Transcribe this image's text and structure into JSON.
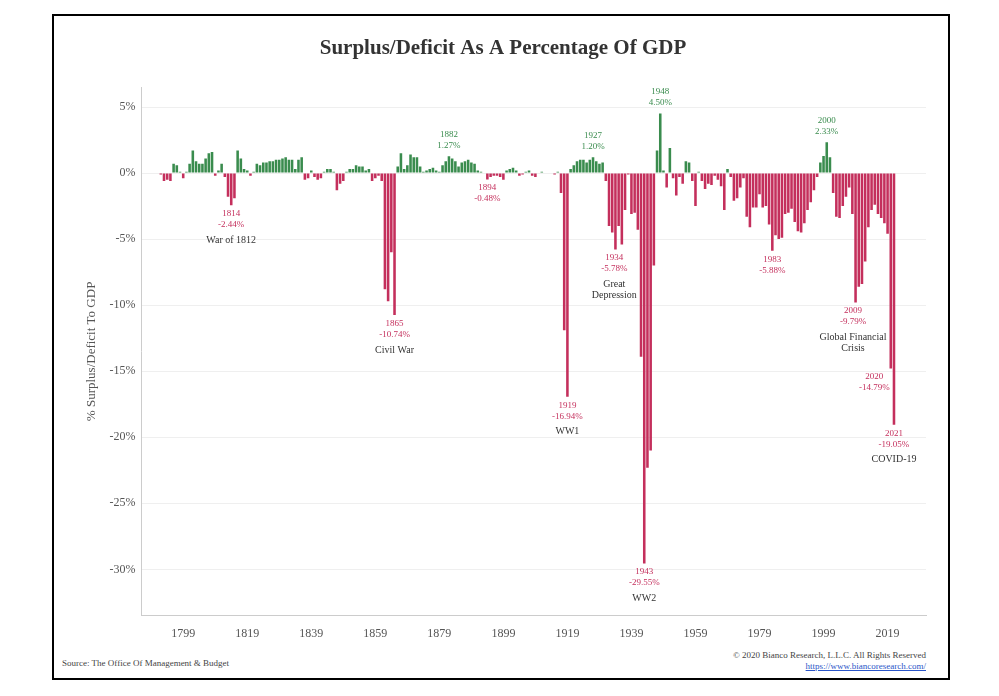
{
  "chart_data": {
    "type": "bar",
    "title": "Surplus/Deficit As A Percentage Of GDP",
    "ylabel": "% Surplus/Deficit To GDP",
    "source": "Source: The Office Of Management & Budget",
    "footer": [
      "© 2020 Bianco Research, L.L.C. All Rights Reserved",
      "https://www.biancoresearch.com/"
    ],
    "x": [
      1792,
      1793,
      1794,
      1795,
      1796,
      1797,
      1798,
      1799,
      1800,
      1801,
      1802,
      1803,
      1804,
      1805,
      1806,
      1807,
      1808,
      1809,
      1810,
      1811,
      1812,
      1813,
      1814,
      1815,
      1816,
      1817,
      1818,
      1819,
      1820,
      1821,
      1822,
      1823,
      1824,
      1825,
      1826,
      1827,
      1828,
      1829,
      1830,
      1831,
      1832,
      1833,
      1834,
      1835,
      1836,
      1837,
      1838,
      1839,
      1840,
      1841,
      1842,
      1843,
      1844,
      1845,
      1846,
      1847,
      1848,
      1849,
      1850,
      1851,
      1852,
      1853,
      1854,
      1855,
      1856,
      1857,
      1858,
      1859,
      1860,
      1861,
      1862,
      1863,
      1864,
      1865,
      1866,
      1867,
      1868,
      1869,
      1870,
      1871,
      1872,
      1873,
      1874,
      1875,
      1876,
      1877,
      1878,
      1879,
      1880,
      1881,
      1882,
      1883,
      1884,
      1885,
      1886,
      1887,
      1888,
      1889,
      1890,
      1891,
      1892,
      1893,
      1894,
      1895,
      1896,
      1897,
      1898,
      1899,
      1900,
      1901,
      1902,
      1903,
      1904,
      1905,
      1906,
      1907,
      1908,
      1909,
      1910,
      1911,
      1912,
      1913,
      1914,
      1915,
      1916,
      1917,
      1918,
      1919,
      1920,
      1921,
      1922,
      1923,
      1924,
      1925,
      1926,
      1927,
      1928,
      1929,
      1930,
      1931,
      1932,
      1933,
      1934,
      1935,
      1936,
      1937,
      1938,
      1939,
      1940,
      1941,
      1942,
      1943,
      1944,
      1945,
      1946,
      1947,
      1948,
      1949,
      1950,
      1951,
      1952,
      1953,
      1954,
      1955,
      1956,
      1957,
      1958,
      1959,
      1960,
      1961,
      1962,
      1963,
      1964,
      1965,
      1966,
      1967,
      1968,
      1969,
      1970,
      1971,
      1972,
      1973,
      1974,
      1975,
      1976,
      1977,
      1978,
      1979,
      1980,
      1981,
      1982,
      1983,
      1984,
      1985,
      1986,
      1987,
      1988,
      1989,
      1990,
      1991,
      1992,
      1993,
      1994,
      1995,
      1996,
      1997,
      1998,
      1999,
      2000,
      2001,
      2002,
      2003,
      2004,
      2005,
      2006,
      2007,
      2008,
      2009,
      2010,
      2011,
      2012,
      2013,
      2014,
      2015,
      2016,
      2017,
      2018,
      2019,
      2020,
      2021
    ],
    "values": [
      -0.1,
      -0.6,
      -0.5,
      -0.6,
      0.7,
      0.6,
      0.1,
      -0.4,
      0.1,
      0.7,
      1.7,
      0.9,
      0.7,
      0.7,
      1.1,
      1.5,
      1.6,
      -0.2,
      0.2,
      0.7,
      -0.3,
      -1.8,
      -2.44,
      -1.9,
      1.7,
      1.1,
      0.3,
      0.2,
      -0.2,
      0.1,
      0.7,
      0.6,
      0.8,
      0.8,
      0.9,
      0.9,
      1.0,
      1.0,
      1.1,
      1.2,
      1.0,
      1.0,
      0.3,
      1.0,
      1.2,
      -0.5,
      -0.4,
      0.2,
      -0.3,
      -0.5,
      -0.4,
      0.1,
      0.3,
      0.3,
      0.1,
      -1.3,
      -0.8,
      -0.6,
      0.1,
      0.3,
      0.3,
      0.6,
      0.5,
      0.5,
      0.2,
      0.3,
      -0.6,
      -0.4,
      -0.2,
      -0.6,
      -8.8,
      -9.7,
      -6.0,
      -10.74,
      0.5,
      1.5,
      0.3,
      0.6,
      1.4,
      1.2,
      1.2,
      0.5,
      0.1,
      0.2,
      0.3,
      0.4,
      0.2,
      0.1,
      0.6,
      0.9,
      1.27,
      1.1,
      0.9,
      0.5,
      0.8,
      0.9,
      1.0,
      0.8,
      0.7,
      0.2,
      0.1,
      0.0,
      -0.48,
      -0.3,
      -0.2,
      -0.2,
      -0.3,
      -0.5,
      0.2,
      0.3,
      0.4,
      0.2,
      -0.2,
      -0.1,
      0.1,
      0.2,
      -0.2,
      -0.3,
      0.0,
      0.1,
      0.0,
      0.0,
      0.0,
      -0.1,
      0.1,
      -1.5,
      -11.9,
      -16.94,
      0.3,
      0.6,
      0.9,
      1.0,
      1.0,
      0.8,
      1.0,
      1.2,
      0.9,
      0.7,
      0.8,
      -0.6,
      -4.0,
      -4.5,
      -5.78,
      -4.0,
      -5.4,
      -2.8,
      -0.1,
      -3.1,
      -3.0,
      -4.3,
      -13.9,
      -29.55,
      -22.3,
      -21.0,
      -7.0,
      1.7,
      4.5,
      0.2,
      -1.1,
      1.9,
      -0.4,
      -1.7,
      -0.3,
      -0.8,
      0.9,
      0.8,
      -0.6,
      -2.5,
      0.1,
      -0.6,
      -1.2,
      -0.8,
      -0.9,
      -0.2,
      -0.5,
      -1.0,
      -2.8,
      0.3,
      -0.3,
      -2.1,
      -1.9,
      -1.1,
      -0.4,
      -3.3,
      -4.1,
      -2.6,
      -2.6,
      -1.6,
      -2.6,
      -2.5,
      -3.9,
      -5.88,
      -4.7,
      -5.0,
      -4.9,
      -3.1,
      -3.0,
      -2.7,
      -3.7,
      -4.4,
      -4.5,
      -3.8,
      -2.8,
      -2.2,
      -1.3,
      -0.3,
      0.8,
      1.3,
      2.33,
      1.2,
      -1.5,
      -3.3,
      -3.4,
      -2.5,
      -1.8,
      -1.1,
      -3.1,
      -9.79,
      -8.6,
      -8.4,
      -6.7,
      -4.1,
      -2.8,
      -2.4,
      -3.1,
      -3.4,
      -3.8,
      -4.6,
      -14.79,
      -19.05
    ],
    "colors": [
      "#c42f5c",
      "#c42f5c",
      "#c42f5c",
      "#c42f5c",
      "#3a8c4e",
      "#3a8c4e",
      "#3a8c4e",
      "#c42f5c",
      "#3a8c4e",
      "#3a8c4e",
      "#3a8c4e",
      "#3a8c4e",
      "#3a8c4e",
      "#3a8c4e",
      "#3a8c4e",
      "#3a8c4e",
      "#3a8c4e",
      "#c42f5c",
      "#3a8c4e",
      "#3a8c4e",
      "#c42f5c",
      "#c42f5c",
      "#c42f5c",
      "#c42f5c",
      "#3a8c4e",
      "#3a8c4e",
      "#3a8c4e",
      "#3a8c4e",
      "#c42f5c",
      "#3a8c4e",
      "#3a8c4e",
      "#3a8c4e",
      "#3a8c4e",
      "#3a8c4e",
      "#3a8c4e",
      "#3a8c4e",
      "#3a8c4e",
      "#3a8c4e",
      "#3a8c4e",
      "#3a8c4e",
      "#3a8c4e",
      "#3a8c4e",
      "#3a8c4e",
      "#3a8c4e",
      "#3a8c4e",
      "#c42f5c",
      "#c42f5c",
      "#3a8c4e",
      "#c42f5c",
      "#c42f5c",
      "#c42f5c",
      "#3a8c4e",
      "#3a8c4e",
      "#3a8c4e",
      "#3a8c4e",
      "#c42f5c",
      "#c42f5c",
      "#c42f5c",
      "#3a8c4e",
      "#3a8c4e",
      "#3a8c4e",
      "#3a8c4e",
      "#3a8c4e",
      "#3a8c4e",
      "#3a8c4e",
      "#3a8c4e",
      "#c42f5c",
      "#c42f5c",
      "#c42f5c",
      "#c42f5c",
      "#c42f5c",
      "#c42f5c",
      "#c42f5c",
      "#c42f5c",
      "#3a8c4e",
      "#3a8c4e",
      "#3a8c4e",
      "#3a8c4e",
      "#3a8c4e",
      "#3a8c4e",
      "#3a8c4e",
      "#3a8c4e",
      "#3a8c4e",
      "#3a8c4e",
      "#3a8c4e",
      "#3a8c4e",
      "#3a8c4e",
      "#3a8c4e",
      "#3a8c4e",
      "#3a8c4e",
      "#3a8c4e",
      "#3a8c4e",
      "#3a8c4e",
      "#3a8c4e",
      "#3a8c4e",
      "#3a8c4e",
      "#3a8c4e",
      "#3a8c4e",
      "#3a8c4e",
      "#3a8c4e",
      "#3a8c4e",
      "#3a8c4e",
      "#c42f5c",
      "#c42f5c",
      "#c42f5c",
      "#c42f5c",
      "#c42f5c",
      "#c42f5c",
      "#3a8c4e",
      "#3a8c4e",
      "#3a8c4e",
      "#3a8c4e",
      "#c42f5c",
      "#c42f5c",
      "#3a8c4e",
      "#3a8c4e",
      "#c42f5c",
      "#c42f5c",
      "#3a8c4e",
      "#3a8c4e",
      "#3a8c4e",
      "#3a8c4e",
      "#3a8c4e",
      "#c42f5c",
      "#3a8c4e",
      "#c42f5c",
      "#c42f5c",
      "#c42f5c",
      "#3a8c4e",
      "#3a8c4e",
      "#3a8c4e",
      "#3a8c4e",
      "#3a8c4e",
      "#3a8c4e",
      "#3a8c4e",
      "#3a8c4e",
      "#3a8c4e",
      "#3a8c4e",
      "#3a8c4e",
      "#c42f5c",
      "#c42f5c",
      "#c42f5c",
      "#c42f5c",
      "#c42f5c",
      "#c42f5c",
      "#c42f5c",
      "#c42f5c",
      "#c42f5c",
      "#c42f5c",
      "#c42f5c",
      "#c42f5c",
      "#c42f5c",
      "#c42f5c",
      "#c42f5c",
      "#c42f5c",
      "#3a8c4e",
      "#3a8c4e",
      "#3a8c4e",
      "#c42f5c",
      "#3a8c4e",
      "#c42f5c",
      "#c42f5c",
      "#c42f5c",
      "#c42f5c",
      "#3a8c4e",
      "#3a8c4e",
      "#c42f5c",
      "#c42f5c",
      "#3a8c4e",
      "#c42f5c",
      "#c42f5c",
      "#c42f5c",
      "#c42f5c",
      "#c42f5c",
      "#c42f5c",
      "#c42f5c",
      "#c42f5c",
      "#3a8c4e",
      "#c42f5c",
      "#c42f5c",
      "#c42f5c",
      "#c42f5c",
      "#c42f5c",
      "#c42f5c",
      "#c42f5c",
      "#c42f5c",
      "#c42f5c",
      "#c42f5c",
      "#c42f5c",
      "#c42f5c",
      "#c42f5c",
      "#c42f5c",
      "#c42f5c",
      "#c42f5c",
      "#c42f5c",
      "#c42f5c",
      "#c42f5c",
      "#c42f5c",
      "#c42f5c",
      "#c42f5c",
      "#c42f5c",
      "#c42f5c",
      "#c42f5c",
      "#c42f5c",
      "#c42f5c",
      "#c42f5c",
      "#3a8c4e",
      "#3a8c4e",
      "#3a8c4e",
      "#3a8c4e",
      "#c42f5c",
      "#c42f5c",
      "#c42f5c",
      "#c42f5c",
      "#c42f5c",
      "#c42f5c",
      "#c42f5c",
      "#c42f5c",
      "#c42f5c",
      "#c42f5c",
      "#c42f5c",
      "#c42f5c",
      "#c42f5c",
      "#c42f5c",
      "#c42f5c",
      "#c42f5c",
      "#c42f5c",
      "#c42f5c",
      "#c42f5c",
      "#c42f5c"
    ],
    "xlim": [
      1786,
      2031
    ],
    "xticks": [
      1799,
      1819,
      1839,
      1859,
      1879,
      1899,
      1919,
      1939,
      1959,
      1979,
      1999,
      2019
    ],
    "ylim": [
      -33.5,
      6.5
    ],
    "yticks": [
      {
        "value": 5,
        "label": "5%"
      },
      {
        "value": 0,
        "label": "0%"
      },
      {
        "value": -5,
        "label": "-5%"
      },
      {
        "value": -10,
        "label": "-10%"
      },
      {
        "value": -15,
        "label": "-15%"
      },
      {
        "value": -20,
        "label": "-20%"
      },
      {
        "value": -25,
        "label": "-25%"
      },
      {
        "value": -30,
        "label": "-30%"
      }
    ],
    "grid": true,
    "annotations": [
      {
        "x": 1814,
        "value": -2.44,
        "label": "-2.44%",
        "note": [
          "War of 1812"
        ]
      },
      {
        "x": 1865,
        "value": -10.74,
        "label": "-10.74%",
        "note": [
          "Civil War"
        ]
      },
      {
        "x": 1882,
        "value": 1.27,
        "label": "1.27%"
      },
      {
        "x": 1894,
        "value": -0.48,
        "label": "-0.48%"
      },
      {
        "x": 1919,
        "value": -16.94,
        "label": "-16.94%",
        "note": [
          "WW1"
        ]
      },
      {
        "x": 1927,
        "value": 1.2,
        "label": "1.20%"
      },
      {
        "x": 1934,
        "value": -5.78,
        "label": "-5.78%",
        "note": [
          "Great",
          "Depression"
        ]
      },
      {
        "x": 1943,
        "value": -29.55,
        "label": "-29.55%",
        "note": [
          "WW2"
        ]
      },
      {
        "x": 1948,
        "value": 4.5,
        "label": "4.50%"
      },
      {
        "x": 1983,
        "value": -5.88,
        "label": "-5.88%"
      },
      {
        "x": 2000,
        "value": 2.33,
        "label": "2.33%"
      },
      {
        "x": 2009,
        "value": -9.79,
        "label": "-9.79%",
        "note": [
          "Global Financial",
          "Crisis"
        ]
      },
      {
        "x": 2020,
        "value": -14.79,
        "label": "-14.79%"
      },
      {
        "x": 2021,
        "value": -19.05,
        "label": "-19.05%",
        "note": [
          "COVID-19"
        ]
      }
    ]
  }
}
